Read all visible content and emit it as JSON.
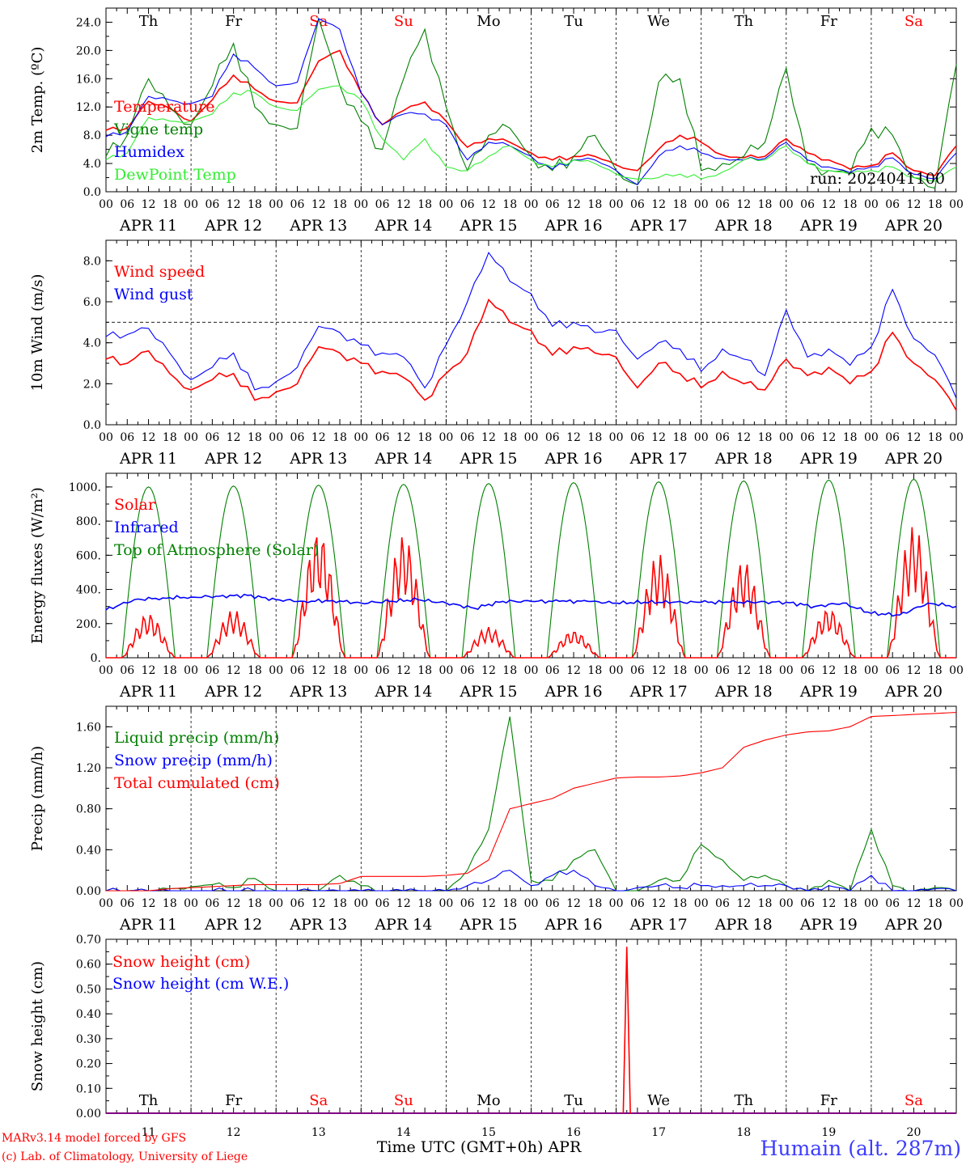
{
  "run_label": "run: 2024041100",
  "station_label": "Humain (alt. 287m)",
  "xaxis_title": "Time UTC (GMT+0h) APR",
  "credits": [
    "MARv3.14 model forced by GFS",
    "(c) Lab. of Climatology, University of Liege"
  ],
  "hour_ticks": [
    "00",
    "06",
    "12",
    "18"
  ],
  "end_tick": "00",
  "date_labels": [
    "APR 11",
    "APR 12",
    "APR 13",
    "APR 14",
    "APR 15",
    "APR 16",
    "APR 17",
    "APR 18",
    "APR 19",
    "APR 20"
  ],
  "bottom_dates": [
    "11",
    "12",
    "13",
    "14",
    "15",
    "16",
    "17",
    "18",
    "19",
    "20"
  ],
  "weekdays": [
    {
      "label": "Th",
      "color": "#000000"
    },
    {
      "label": "Fr",
      "color": "#000000"
    },
    {
      "label": "Sa",
      "color": "#ff0000"
    },
    {
      "label": "Su",
      "color": "#ff0000"
    },
    {
      "label": "Mo",
      "color": "#000000"
    },
    {
      "label": "Tu",
      "color": "#000000"
    },
    {
      "label": "We",
      "color": "#000000"
    },
    {
      "label": "Th",
      "color": "#000000"
    },
    {
      "label": "Fr",
      "color": "#000000"
    },
    {
      "label": "Sa",
      "color": "#ff0000"
    }
  ],
  "colors": {
    "red": "#ff0000",
    "green": "#008000",
    "blue": "#0000ff",
    "lightgreen": "#33ee33",
    "grid": "#000000"
  },
  "chart_data": [
    {
      "type": "line",
      "ylabel": "2m Temp. (ºC)",
      "ylim": [
        0,
        26
      ],
      "yticks": [
        "0.0",
        "4.0",
        "8.0",
        "12.0",
        "16.0",
        "20.0",
        "24.0"
      ],
      "yticks_values": [
        0,
        4,
        8,
        12,
        16,
        20,
        24
      ],
      "x": [
        0,
        6,
        12,
        18,
        24,
        30,
        36,
        42,
        48,
        54,
        60,
        66,
        72,
        78,
        84,
        90,
        96,
        102,
        108,
        114,
        120,
        126,
        132,
        138,
        144,
        150,
        156,
        162,
        168,
        174,
        180,
        186,
        192,
        198,
        204,
        210,
        216,
        222,
        228,
        234,
        240
      ],
      "series": [
        {
          "name": "Temperature",
          "color": "#ff0000",
          "values": [
            8.7,
            9.0,
            12.8,
            11.8,
            10.0,
            13.0,
            16.5,
            14.5,
            12.8,
            12.6,
            18.5,
            20.0,
            14.0,
            9.5,
            11.5,
            12.7,
            10.0,
            6.3,
            7.5,
            7.0,
            5.5,
            4.5,
            5.0,
            5.0,
            3.8,
            3.0,
            6.0,
            8.0,
            7.0,
            5.2,
            4.8,
            5.0,
            7.5,
            5.5,
            4.5,
            3.2,
            3.7,
            5.5,
            3.0,
            2.3,
            6.5
          ]
        },
        {
          "name": "Vigne temp",
          "color": "#008000",
          "values": [
            5.0,
            8.0,
            16.0,
            12.0,
            9.5,
            15.0,
            21.0,
            12.0,
            9.5,
            9.0,
            24.5,
            15.0,
            10.0,
            6.0,
            16.0,
            23.0,
            12.0,
            3.0,
            8.0,
            9.0,
            5.0,
            3.0,
            5.0,
            8.0,
            3.0,
            1.0,
            15.5,
            16.0,
            3.0,
            4.0,
            5.0,
            7.0,
            17.5,
            4.0,
            3.0,
            2.5,
            9.0,
            8.0,
            2.0,
            0.5,
            18.0
          ]
        },
        {
          "name": "Humidex",
          "color": "#0000ff",
          "values": [
            7.8,
            8.5,
            13.5,
            13.0,
            12.5,
            13.5,
            19.5,
            17.5,
            15.0,
            15.5,
            24.5,
            23.0,
            14.0,
            9.5,
            11.0,
            11.0,
            9.5,
            4.5,
            7.0,
            6.5,
            5.0,
            3.2,
            4.5,
            4.5,
            3.0,
            1.0,
            5.0,
            6.5,
            5.5,
            4.7,
            4.5,
            4.7,
            7.0,
            4.5,
            3.5,
            2.7,
            3.5,
            4.8,
            2.5,
            1.8,
            5.5
          ]
        },
        {
          "name": "DewPoint Temp",
          "color": "#33ee33",
          "values": [
            4.5,
            5.5,
            10.5,
            10.0,
            10.0,
            11.0,
            14.0,
            14.0,
            12.0,
            11.5,
            14.5,
            15.0,
            13.0,
            7.5,
            4.5,
            7.5,
            3.5,
            3.0,
            5.0,
            6.5,
            4.5,
            3.5,
            4.5,
            4.0,
            2.5,
            1.8,
            2.0,
            2.5,
            1.8,
            2.8,
            4.5,
            4.5,
            6.5,
            4.0,
            3.0,
            2.5,
            3.0,
            3.5,
            2.0,
            1.5,
            3.5
          ]
        }
      ],
      "legend_placement": "top-left",
      "grid": "vertical dashed day separators"
    },
    {
      "type": "line",
      "ylabel": "10m Wind (m/s)",
      "ylim": [
        0,
        9
      ],
      "yticks": [
        "0.0",
        "2.0",
        "4.0",
        "6.0",
        "8.0"
      ],
      "yticks_values": [
        0,
        2,
        4,
        6,
        8
      ],
      "reference_line": 5,
      "x": [
        0,
        6,
        12,
        18,
        24,
        30,
        36,
        42,
        48,
        54,
        60,
        66,
        72,
        78,
        84,
        90,
        96,
        102,
        108,
        114,
        120,
        126,
        132,
        138,
        144,
        150,
        156,
        162,
        168,
        174,
        180,
        186,
        192,
        198,
        204,
        210,
        216,
        222,
        228,
        234,
        240
      ],
      "series": [
        {
          "name": "Wind speed",
          "color": "#ff0000",
          "values": [
            3.2,
            3.0,
            3.6,
            2.5,
            1.7,
            2.2,
            2.5,
            1.2,
            1.6,
            2.0,
            3.8,
            3.5,
            3.0,
            2.6,
            2.3,
            1.2,
            2.5,
            3.5,
            6.1,
            5.0,
            4.6,
            3.4,
            3.8,
            3.5,
            3.3,
            1.8,
            3.0,
            2.5,
            1.8,
            2.6,
            2.0,
            1.7,
            3.2,
            2.4,
            2.8,
            2.0,
            2.6,
            4.5,
            3.0,
            2.2,
            0.7
          ]
        },
        {
          "name": "Wind gust",
          "color": "#0000ff",
          "values": [
            4.3,
            4.4,
            4.7,
            3.5,
            2.2,
            2.8,
            3.5,
            1.7,
            2.1,
            2.8,
            4.8,
            4.5,
            3.9,
            3.5,
            3.3,
            1.8,
            3.9,
            6.0,
            8.4,
            7.0,
            6.4,
            4.8,
            5.0,
            4.5,
            4.6,
            3.2,
            4.0,
            3.7,
            2.6,
            3.7,
            3.2,
            2.4,
            5.6,
            3.3,
            3.7,
            2.9,
            3.8,
            6.6,
            4.2,
            3.4,
            1.3
          ]
        }
      ],
      "legend_placement": "top-left",
      "grid": "vertical dashed day separators"
    },
    {
      "type": "line",
      "ylabel": "Energy fluxes (W/m²)",
      "ylim": [
        0,
        1080
      ],
      "yticks": [
        "0.",
        "200.",
        "400.",
        "600.",
        "800.",
        "1000."
      ],
      "yticks_values": [
        0,
        200,
        400,
        600,
        800,
        1000
      ],
      "daily_solar_peak_top_of_atmosphere": [
        1000,
        1005,
        1010,
        1015,
        1020,
        1025,
        1030,
        1035,
        1040,
        1045
      ],
      "daily_solar_peak": [
        260,
        280,
        750,
        720,
        180,
        160,
        610,
        570,
        290,
        770
      ],
      "infrared": [
        280,
        340,
        350,
        355,
        360,
        365,
        340,
        330,
        335,
        320,
        330,
        340,
        320,
        290,
        330,
        330,
        330,
        330,
        320,
        325,
        325,
        325,
        325,
        325,
        325,
        300,
        320,
        260,
        250,
        320,
        300
      ],
      "series": [
        {
          "name": "Solar",
          "color": "#ff0000"
        },
        {
          "name": "Infrared",
          "color": "#0000ff"
        },
        {
          "name": "Top of Atmosphere (Solar)",
          "color": "#008000"
        }
      ],
      "legend_placement": "top-left",
      "grid": "vertical dashed day separators"
    },
    {
      "type": "line",
      "ylabel": "Precip (mm/h)",
      "ylim": [
        0,
        1.8
      ],
      "yticks": [
        "0.00",
        "0.40",
        "0.80",
        "1.20",
        "1.60"
      ],
      "yticks_values": [
        0,
        0.4,
        0.8,
        1.2,
        1.6
      ],
      "x": [
        0,
        6,
        12,
        18,
        24,
        30,
        36,
        42,
        48,
        54,
        60,
        66,
        72,
        78,
        84,
        90,
        96,
        102,
        108,
        114,
        120,
        126,
        132,
        138,
        144,
        150,
        156,
        162,
        168,
        174,
        180,
        186,
        192,
        198,
        204,
        210,
        216,
        222,
        228,
        234,
        240
      ],
      "series": [
        {
          "name": "Liquid precip (mm/h)",
          "color": "#008000",
          "values": [
            0,
            0,
            0,
            0.02,
            0.04,
            0.06,
            0.03,
            0.12,
            0,
            0,
            0,
            0.15,
            0.05,
            0,
            0,
            0,
            0,
            0.2,
            0.6,
            1.7,
            0.1,
            0.1,
            0.3,
            0.4,
            0,
            0,
            0.1,
            0.1,
            0.45,
            0.3,
            0.1,
            0.15,
            0.05,
            0,
            0.1,
            0,
            0.6,
            0.05,
            0,
            0.03,
            0
          ]
        },
        {
          "name": "Snow precip (mm/h)",
          "color": "#0000ff",
          "values": [
            0,
            0,
            0,
            0,
            0,
            0,
            0,
            0,
            0,
            0,
            0,
            0,
            0,
            0,
            0,
            0,
            0,
            0.05,
            0.1,
            0.2,
            0.05,
            0.15,
            0.2,
            0.05,
            0,
            0.03,
            0.05,
            0.03,
            0.05,
            0.05,
            0.05,
            0.05,
            0.05,
            0,
            0.05,
            0,
            0.15,
            0,
            0,
            0.02,
            0
          ]
        },
        {
          "name": "Total cumulated (cm)",
          "color": "#ff0000",
          "values": [
            0,
            0,
            0,
            0.02,
            0.03,
            0.04,
            0.05,
            0.06,
            0.06,
            0.06,
            0.06,
            0.07,
            0.14,
            0.14,
            0.14,
            0.14,
            0.15,
            0.17,
            0.3,
            0.8,
            0.85,
            0.9,
            1.0,
            1.05,
            1.1,
            1.11,
            1.11,
            1.12,
            1.15,
            1.2,
            1.4,
            1.47,
            1.52,
            1.55,
            1.56,
            1.6,
            1.7,
            1.71,
            1.72,
            1.73,
            1.74
          ]
        }
      ],
      "legend_placement": "top-left",
      "grid": "vertical dashed day separators"
    },
    {
      "type": "line",
      "ylabel": "Snow height (cm)",
      "ylim": [
        0,
        0.7
      ],
      "yticks": [
        "0.00",
        "0.10",
        "0.20",
        "0.30",
        "0.40",
        "0.50",
        "0.60",
        "0.70"
      ],
      "yticks_values": [
        0,
        0.1,
        0.2,
        0.3,
        0.4,
        0.5,
        0.6,
        0.7
      ],
      "series": [
        {
          "name": "Snow height (cm)",
          "color": "#ff0000",
          "spike_hour": 147,
          "spike_value": 0.67
        },
        {
          "name": "Snow height (cm W.E.)",
          "color": "#0000ff"
        }
      ],
      "legend_placement": "top-left",
      "grid": "vertical dashed day separators"
    }
  ]
}
